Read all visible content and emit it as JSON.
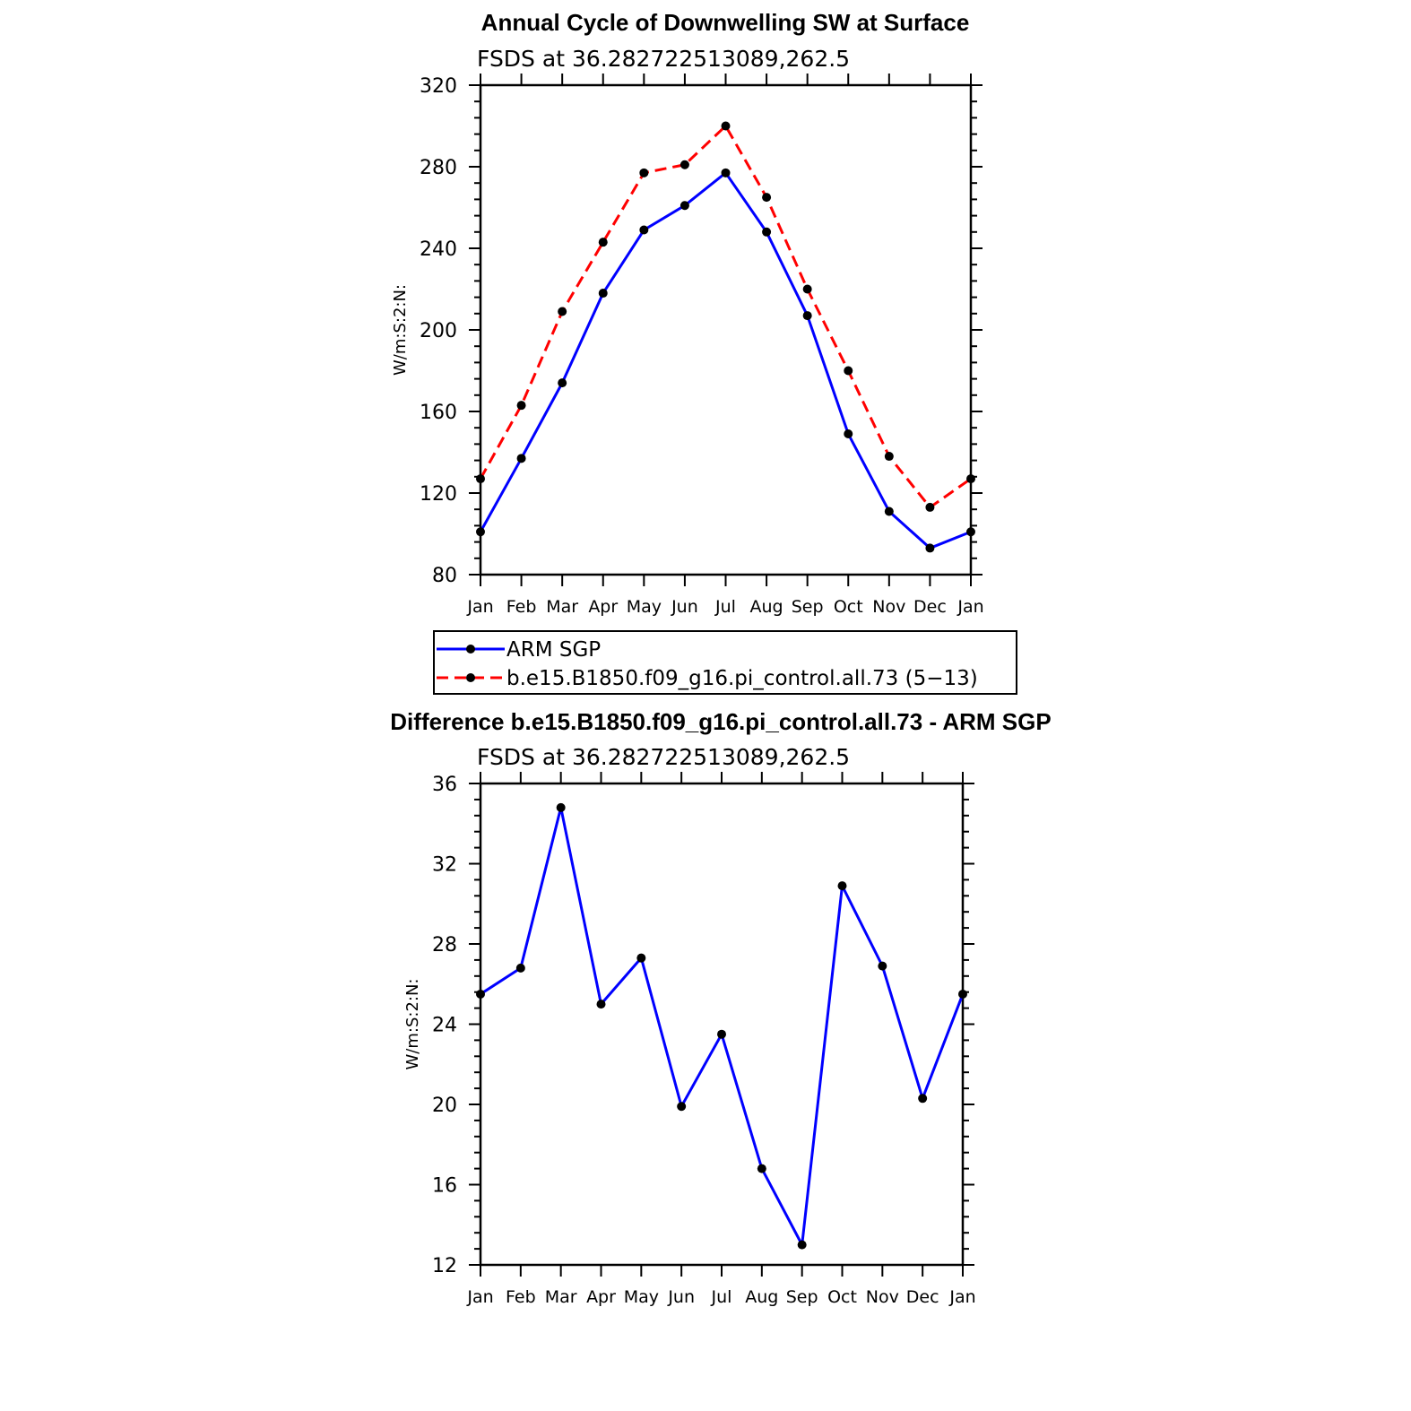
{
  "chart_data": [
    {
      "type": "line",
      "title": "Annual Cycle of Downwelling SW at Surface",
      "subtitle": "FSDS at 36.282722513089,262.5",
      "ylabel": "W/m:S:2:N:",
      "xlabel": "",
      "ylim": [
        80,
        320
      ],
      "yticks": [
        "80",
        "120",
        "160",
        "200",
        "240",
        "280",
        "320"
      ],
      "categories": [
        "Jan",
        "Feb",
        "Mar",
        "Apr",
        "May",
        "Jun",
        "Jul",
        "Aug",
        "Sep",
        "Oct",
        "Nov",
        "Dec",
        "Jan"
      ],
      "series": [
        {
          "name": "ARM SGP",
          "color": "#0000ff",
          "dash": "solid",
          "values": [
            101,
            137,
            174,
            218,
            249,
            261,
            277,
            248,
            207,
            149,
            111,
            93,
            101
          ]
        },
        {
          "name": "b.e15.B1850.f09_g16.pi_control.all.73 (5−13)",
          "color": "#ff0000",
          "dash": "dashed",
          "values": [
            127,
            163,
            209,
            243,
            277,
            281,
            300,
            265,
            220,
            180,
            138,
            113,
            127
          ]
        }
      ]
    },
    {
      "type": "line",
      "title": "Difference b.e15.B1850.f09_g16.pi_control.all.73 - ARM SGP",
      "subtitle": "FSDS at 36.282722513089,262.5",
      "ylabel": "W/m:S:2:N:",
      "xlabel": "",
      "ylim": [
        12,
        36
      ],
      "yticks": [
        "12",
        "16",
        "20",
        "24",
        "28",
        "32",
        "36"
      ],
      "categories": [
        "Jan",
        "Feb",
        "Mar",
        "Apr",
        "May",
        "Jun",
        "Jul",
        "Aug",
        "Sep",
        "Oct",
        "Nov",
        "Dec",
        "Jan"
      ],
      "series": [
        {
          "name": "Difference",
          "color": "#0000ff",
          "dash": "solid",
          "values": [
            25.5,
            26.8,
            34.8,
            25.0,
            27.3,
            19.9,
            23.5,
            16.8,
            13.0,
            30.9,
            26.9,
            20.3,
            25.5
          ]
        }
      ]
    }
  ],
  "marker_color": "#000000"
}
